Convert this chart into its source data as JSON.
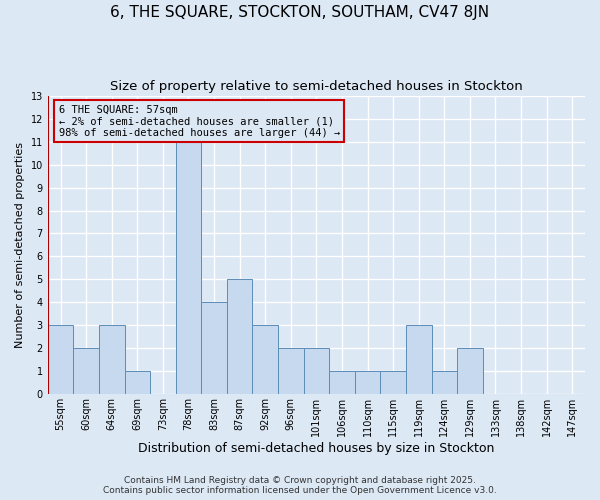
{
  "title": "6, THE SQUARE, STOCKTON, SOUTHAM, CV47 8JN",
  "subtitle": "Size of property relative to semi-detached houses in Stockton",
  "xlabel": "Distribution of semi-detached houses by size in Stockton",
  "ylabel": "Number of semi-detached properties",
  "categories": [
    "55sqm",
    "60sqm",
    "64sqm",
    "69sqm",
    "73sqm",
    "78sqm",
    "83sqm",
    "87sqm",
    "92sqm",
    "96sqm",
    "101sqm",
    "106sqm",
    "110sqm",
    "115sqm",
    "119sqm",
    "124sqm",
    "129sqm",
    "133sqm",
    "138sqm",
    "142sqm",
    "147sqm"
  ],
  "values": [
    3,
    2,
    3,
    1,
    0,
    11,
    4,
    5,
    3,
    2,
    2,
    1,
    1,
    1,
    3,
    1,
    2,
    0,
    0,
    0,
    0
  ],
  "bar_color": "#c6d9ee",
  "bar_edge_color": "#5b8db8",
  "vline_color": "#aa0000",
  "annotation_title": "6 THE SQUARE: 57sqm",
  "annotation_line2": "← 2% of semi-detached houses are smaller (1)",
  "annotation_line3": "98% of semi-detached houses are larger (44) →",
  "annotation_box_edgecolor": "#cc0000",
  "annotation_box_facecolor": "#dde8f5",
  "ylim_max": 13,
  "yticks": [
    0,
    1,
    2,
    3,
    4,
    5,
    6,
    7,
    8,
    9,
    10,
    11,
    12,
    13
  ],
  "background_color": "#dde8f5",
  "grid_color": "#ffffff",
  "footer_line1": "Contains HM Land Registry data © Crown copyright and database right 2025.",
  "footer_line2": "Contains public sector information licensed under the Open Government Licence v3.0.",
  "title_fontsize": 11,
  "subtitle_fontsize": 9.5,
  "xlabel_fontsize": 9,
  "ylabel_fontsize": 8,
  "tick_fontsize": 7,
  "annotation_fontsize": 7.5,
  "footer_fontsize": 6.5
}
